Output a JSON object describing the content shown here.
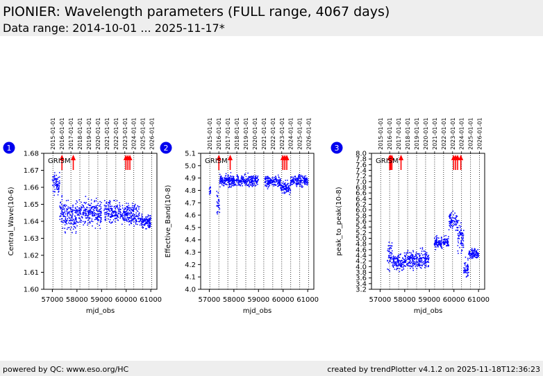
{
  "header": {
    "title": "PIONIER: Wavelength parameters (FULL range, 4067 days)",
    "subtitle": "Data range: 2014-10-01 ... 2025-11-17*"
  },
  "footer": {
    "left": "powered by QC: www.eso.org/HC",
    "right": "created by trendPlotter v4.1.2 on 2025-11-18T12:36:23"
  },
  "colors": {
    "points": "#0000ff",
    "events": "#ff0000",
    "header_bg": "#eeeeee",
    "badge": "#0000ee"
  },
  "chart_data": [
    {
      "type": "scatter",
      "index": "1",
      "annotation": "GRISM",
      "xlabel": "mjd_obs",
      "ylabel": "Central_Wave(10-6)",
      "xlim": [
        56650,
        61250
      ],
      "xticks": [
        57000,
        58000,
        59000,
        60000,
        61000
      ],
      "ylim": [
        1.6,
        1.68
      ],
      "yticks": [
        "1.60",
        "1.61",
        "1.62",
        "1.63",
        "1.64",
        "1.65",
        "1.66",
        "1.67",
        "1.68"
      ],
      "event_x": [
        57390,
        57850,
        59990,
        60070,
        60150
      ],
      "series": [
        {
          "x": [
            57000,
            57300
          ],
          "center": 1.662,
          "spread": 0.004
        },
        {
          "x": [
            57300,
            57500
          ],
          "center": 1.645,
          "spread": 0.006
        },
        {
          "x": [
            57500,
            58000
          ],
          "center": 1.643,
          "spread": 0.006
        },
        {
          "x": [
            58000,
            59000
          ],
          "center": 1.645,
          "spread": 0.005
        },
        {
          "x": [
            59100,
            60100
          ],
          "center": 1.645,
          "spread": 0.004
        },
        {
          "x": [
            60100,
            60550
          ],
          "center": 1.644,
          "spread": 0.004
        },
        {
          "x": [
            60550,
            61000
          ],
          "center": 1.64,
          "spread": 0.003
        }
      ]
    },
    {
      "type": "scatter",
      "index": "2",
      "annotation": "GRISM",
      "xlabel": "mjd_obs",
      "ylabel": "Effective_Band(10-8)",
      "xlim": [
        56650,
        61250
      ],
      "xticks": [
        57000,
        58000,
        59000,
        60000,
        61000
      ],
      "ylim": [
        4.0,
        5.1
      ],
      "yticks": [
        "4.0",
        "4.1",
        "4.2",
        "4.3",
        "4.4",
        "4.5",
        "4.6",
        "4.7",
        "4.8",
        "4.9",
        "5.0",
        "5.1"
      ],
      "event_x": [
        57390,
        57850,
        59990,
        60070,
        60150
      ],
      "series": [
        {
          "x": [
            57000,
            57050
          ],
          "center": 4.8,
          "spread": 0.03
        },
        {
          "x": [
            57300,
            57420
          ],
          "center": 4.7,
          "spread": 0.08
        },
        {
          "x": [
            57420,
            59000
          ],
          "center": 4.88,
          "spread": 0.03
        },
        {
          "x": [
            59250,
            59900
          ],
          "center": 4.87,
          "spread": 0.03
        },
        {
          "x": [
            59900,
            60300
          ],
          "center": 4.82,
          "spread": 0.03
        },
        {
          "x": [
            60300,
            61000
          ],
          "center": 4.88,
          "spread": 0.03
        }
      ]
    },
    {
      "type": "scatter",
      "index": "3",
      "annotation": "GRISM",
      "xlabel": "mjd_obs",
      "ylabel": "peak_to_peak(10-8)",
      "xlim": [
        56650,
        61250
      ],
      "xticks": [
        57000,
        58000,
        59000,
        60000,
        61000
      ],
      "ylim": [
        3.2,
        8.0
      ],
      "yticks": [
        "3.2",
        "3.4",
        "3.6",
        "3.8",
        "4.0",
        "4.2",
        "4.4",
        "4.6",
        "4.8",
        "5.0",
        "5.2",
        "5.4",
        "5.6",
        "5.8",
        "6.0",
        "6.2",
        "6.4",
        "6.6",
        "6.8",
        "7.0",
        "7.2",
        "7.4",
        "7.6",
        "7.8",
        "8.0"
      ],
      "event_x": [
        57390,
        57430,
        57480,
        57850,
        59990,
        60070,
        60150,
        60280
      ],
      "series": [
        {
          "x": [
            57300,
            57500
          ],
          "center": 4.4,
          "spread": 0.35
        },
        {
          "x": [
            57500,
            58000
          ],
          "center": 4.15,
          "spread": 0.2
        },
        {
          "x": [
            58000,
            59000
          ],
          "center": 4.25,
          "spread": 0.2
        },
        {
          "x": [
            59200,
            59800
          ],
          "center": 4.85,
          "spread": 0.15
        },
        {
          "x": [
            59800,
            60150
          ],
          "center": 5.6,
          "spread": 0.2
        },
        {
          "x": [
            60150,
            60400
          ],
          "center": 5.0,
          "spread": 0.35
        },
        {
          "x": [
            60400,
            60600
          ],
          "center": 3.9,
          "spread": 0.2
        },
        {
          "x": [
            60600,
            61000
          ],
          "center": 4.45,
          "spread": 0.12
        }
      ]
    }
  ]
}
